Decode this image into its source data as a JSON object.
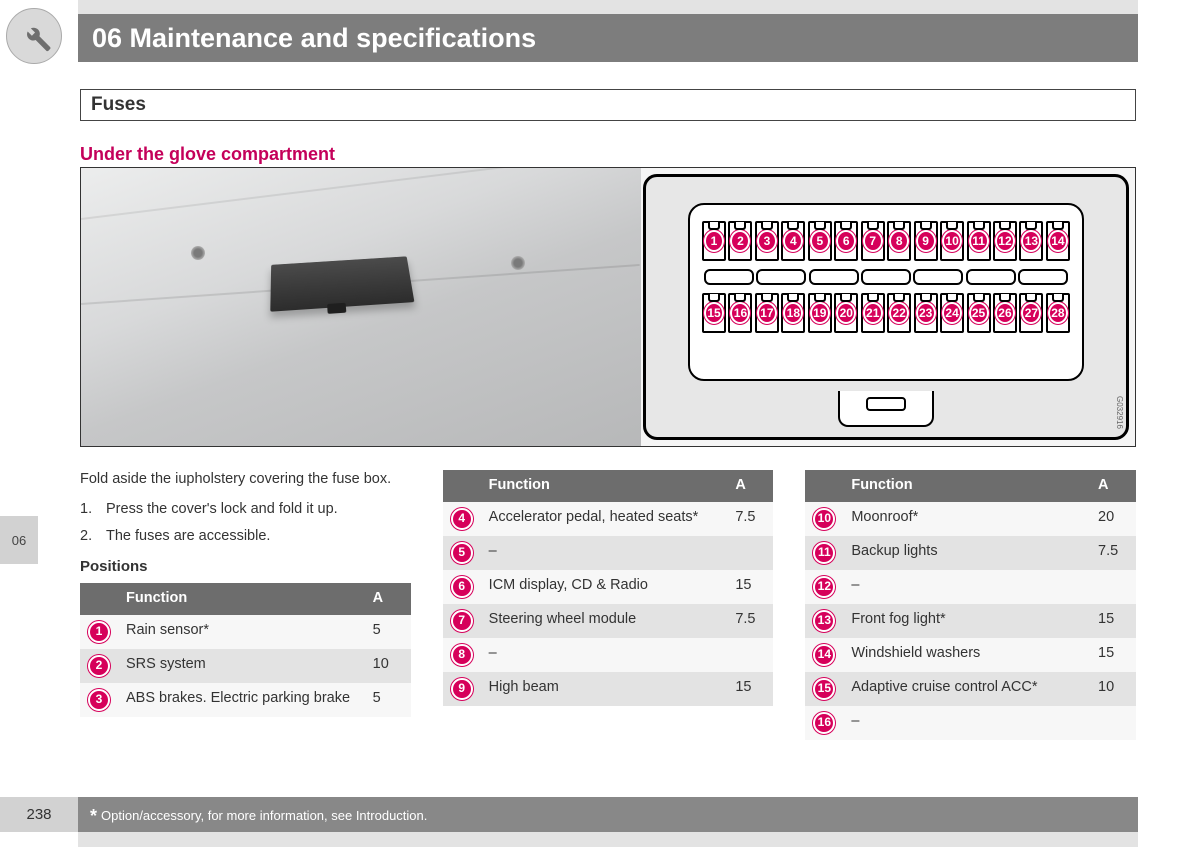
{
  "header": {
    "chapter": "06 Maintenance and specifications"
  },
  "section": {
    "title": "Fuses"
  },
  "subheading": "Under the glove compartment",
  "diagram": {
    "top_row": [
      1,
      2,
      3,
      4,
      5,
      6,
      7,
      8,
      9,
      10,
      11,
      12,
      13,
      14
    ],
    "bottom_row": [
      15,
      16,
      17,
      18,
      19,
      20,
      21,
      22,
      23,
      24,
      25,
      26,
      27,
      28
    ],
    "code": "G032916",
    "badge_color": "#d6005a"
  },
  "instructions": {
    "intro": "Fold aside the iupholstery covering the fuse box.",
    "steps": [
      {
        "n": "1.",
        "t": "Press the cover's lock and fold it up."
      },
      {
        "n": "2.",
        "t": "The fuses are accessible."
      }
    ],
    "positions_label": "Positions"
  },
  "table_headers": {
    "function": "Function",
    "amp": "A"
  },
  "tables": {
    "col1": [
      {
        "num": 1,
        "fn": "Rain sensor*",
        "a": "5"
      },
      {
        "num": 2,
        "fn": "SRS system",
        "a": "10"
      },
      {
        "num": 3,
        "fn": "ABS brakes. Electric parking brake",
        "a": "5"
      }
    ],
    "col2": [
      {
        "num": 4,
        "fn": "Accelerator pedal, heated seats*",
        "a": "7.5"
      },
      {
        "num": 5,
        "fn": "–",
        "a": ""
      },
      {
        "num": 6,
        "fn": "ICM display, CD & Radio",
        "a": "15"
      },
      {
        "num": 7,
        "fn": "Steering wheel module",
        "a": "7.5"
      },
      {
        "num": 8,
        "fn": "–",
        "a": ""
      },
      {
        "num": 9,
        "fn": "High beam",
        "a": "15"
      }
    ],
    "col3": [
      {
        "num": 10,
        "fn": "Moonroof*",
        "a": "20"
      },
      {
        "num": 11,
        "fn": "Backup lights",
        "a": "7.5"
      },
      {
        "num": 12,
        "fn": "–",
        "a": ""
      },
      {
        "num": 13,
        "fn": "Front fog light*",
        "a": "15"
      },
      {
        "num": 14,
        "fn": "Windshield washers",
        "a": "15"
      },
      {
        "num": 15,
        "fn": "Adaptive cruise control ACC*",
        "a": "10"
      },
      {
        "num": 16,
        "fn": "–",
        "a": ""
      }
    ]
  },
  "side_tab": "06",
  "footer": {
    "page": "238",
    "note": "Option/accessory, for more information, see Introduction."
  },
  "colors": {
    "accent": "#d6005a",
    "header_bg": "#7d7d7d",
    "th_bg": "#6d6d6d",
    "row_odd": "#f7f7f7",
    "row_even": "#e3e3e3"
  }
}
